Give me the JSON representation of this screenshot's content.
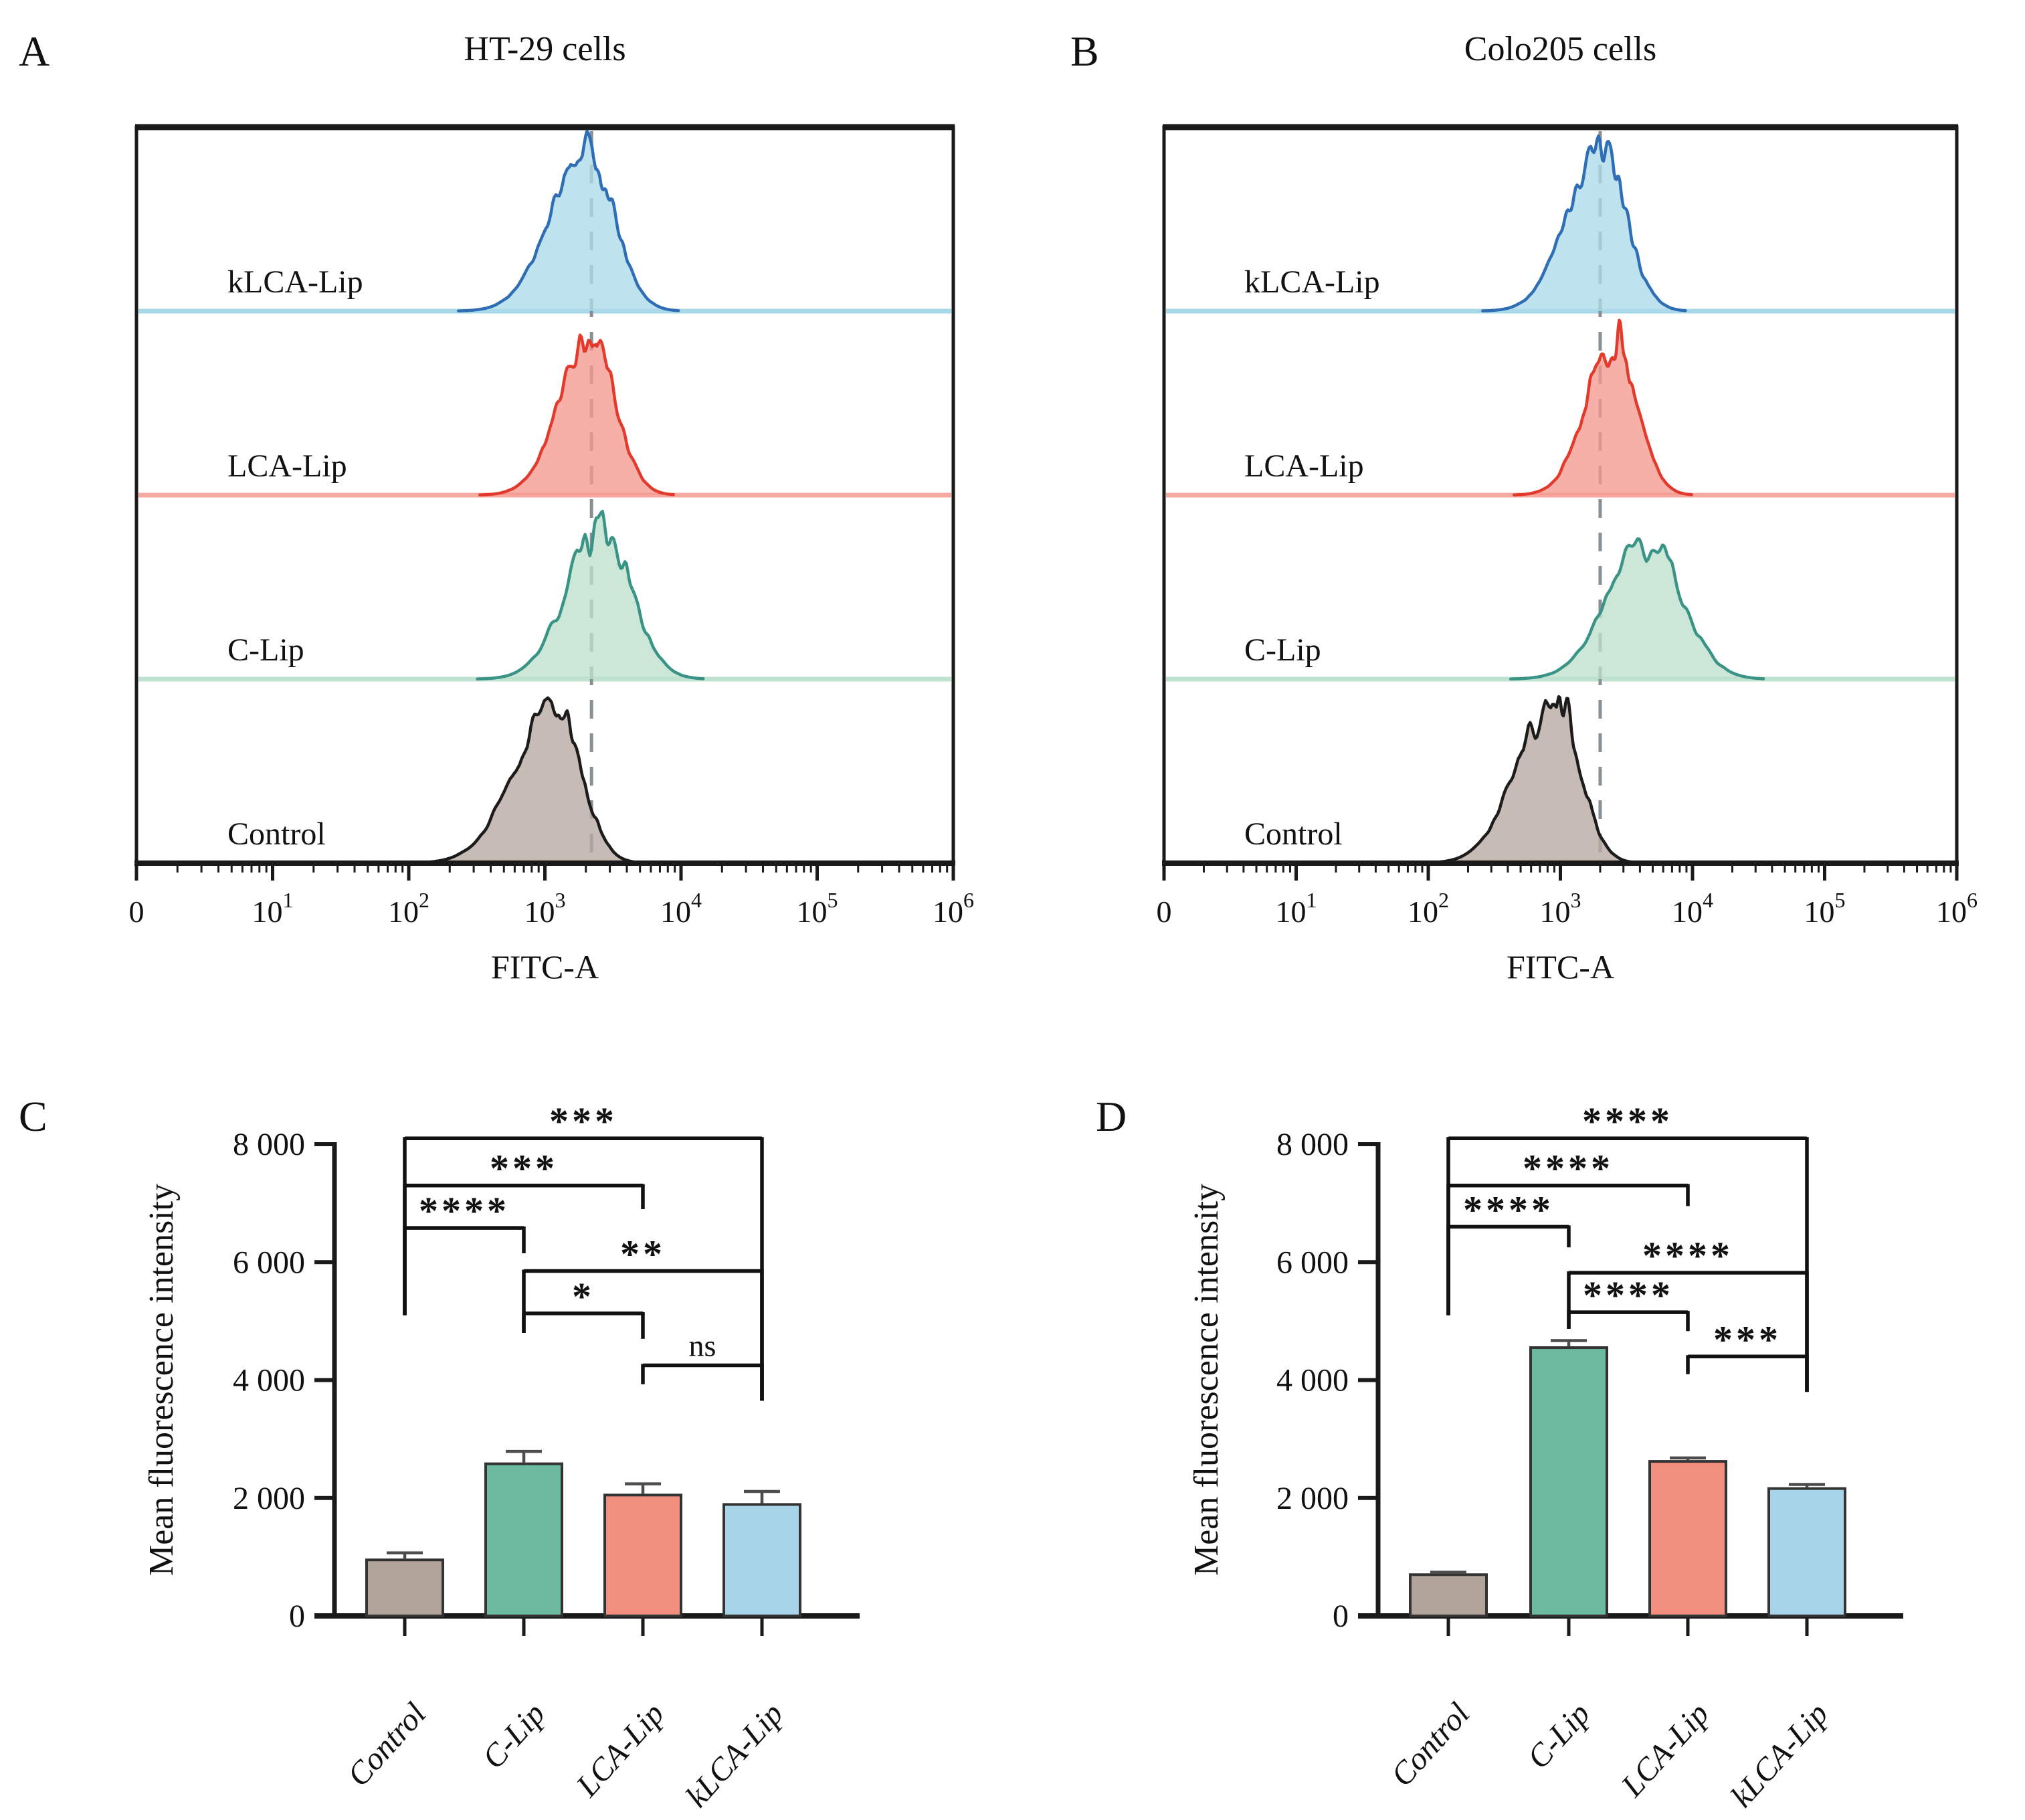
{
  "figure": {
    "background": "#ffffff",
    "description": "Flow cytometry histograms and mean fluorescence intensity bar charts for liposome uptake in HT-29 and Colo205 cells"
  },
  "chart_data": [
    {
      "panel_letter": "A",
      "type": "histogram",
      "title": "HT-29 cells",
      "xlabel": "FITC-A",
      "x_scale": "log10 decades, origin tick 0 then 10^1 to 10^6",
      "x_ticks": [
        "0",
        "10^1",
        "10^2",
        "10^3",
        "10^4",
        "10^5",
        "10^6"
      ],
      "dashed_reference_x": 2200,
      "dash_color": "#8b9094",
      "series": [
        {
          "name": "kLCA-Lip",
          "median": 2000,
          "spread_decades": 0.2,
          "peak_fraction": 0.88,
          "left_skew": 1.3,
          "stroke": "#2f6eb5",
          "fill": "#addbe9",
          "baseline_color": "#a6d8e8",
          "seed": 11
        },
        {
          "name": "LCA-Lip",
          "median": 2150,
          "spread_decades": 0.18,
          "peak_fraction": 0.88,
          "left_skew": 1.25,
          "stroke": "#e23b2e",
          "fill": "#f49a90",
          "baseline_color": "#f5a9a1",
          "seed": 22
        },
        {
          "name": "C-Lip",
          "median": 2600,
          "spread_decades": 0.22,
          "peak_fraction": 0.8,
          "left_skew": 1.15,
          "stroke": "#3a9486",
          "fill": "#bedfcd",
          "baseline_color": "#bfe2d1",
          "seed": 33
        },
        {
          "name": "Control",
          "median": 1200,
          "spread_decades": 0.185,
          "peak_fraction": 0.86,
          "left_skew": 1.6,
          "stroke": "#1c1c1c",
          "fill": "#b7a9a0",
          "baseline_color": null,
          "seed": 44
        }
      ]
    },
    {
      "panel_letter": "B",
      "type": "histogram",
      "title": "Colo205 cells",
      "xlabel": "FITC-A",
      "x_scale": "log10 decades, origin tick 0 then 10^1 to 10^6",
      "x_ticks": [
        "0",
        "10^1",
        "10^2",
        "10^3",
        "10^4",
        "10^5",
        "10^6"
      ],
      "dashed_reference_x": 2000,
      "dash_color": "#8b9094",
      "series": [
        {
          "name": "kLCA-Lip",
          "median": 2000,
          "spread_decades": 0.19,
          "peak_fraction": 0.9,
          "left_skew": 1.3,
          "stroke": "#2f6eb5",
          "fill": "#addbe9",
          "baseline_color": "#a6d8e8",
          "seed": 55
        },
        {
          "name": "LCA-Lip",
          "median": 2600,
          "spread_decades": 0.17,
          "peak_fraction": 0.86,
          "left_skew": 1.25,
          "stroke": "#e23b2e",
          "fill": "#f49a90",
          "baseline_color": "#f5a9a1",
          "seed": 66
        },
        {
          "name": "C-Lip",
          "median": 4500,
          "spread_decades": 0.26,
          "peak_fraction": 0.78,
          "left_skew": 1.1,
          "stroke": "#3a9486",
          "fill": "#bedfcd",
          "baseline_color": "#bfe2d1",
          "seed": 77
        },
        {
          "name": "Control",
          "median": 900,
          "spread_decades": 0.185,
          "peak_fraction": 0.9,
          "left_skew": 1.5,
          "stroke": "#1c1c1c",
          "fill": "#b7a9a0",
          "baseline_color": null,
          "seed": 88
        }
      ]
    },
    {
      "panel_letter": "C",
      "type": "bar",
      "ylabel": "Mean fluorescence intensity",
      "categories": [
        "Control",
        "C-Lip",
        "LCA-Lip",
        "kLCA-Lip"
      ],
      "values": [
        950,
        2580,
        2050,
        1890
      ],
      "errors": [
        120,
        210,
        190,
        220
      ],
      "bar_colors": [
        "#b2a49a",
        "#6cb9a0",
        "#f18f7f",
        "#a7d4e8"
      ],
      "bar_stroke": "#333333",
      "error_color": "#4d4d4d",
      "ylim": [
        0,
        8000
      ],
      "yticks": [
        {
          "value": 0,
          "label": "0"
        },
        {
          "value": 2000,
          "label": "2 000"
        },
        {
          "value": 4000,
          "label": "4 000"
        },
        {
          "value": 6000,
          "label": "6 000"
        },
        {
          "value": 8000,
          "label": "8 000"
        }
      ],
      "significance": [
        {
          "a": 0,
          "b": 3,
          "label": "***",
          "y": 8100,
          "a_end": 5100,
          "b_end": 3650
        },
        {
          "a": 0,
          "b": 2,
          "label": "***",
          "y": 7300,
          "a_end": 5100,
          "b_end": 6900
        },
        {
          "a": 0,
          "b": 1,
          "label": "****",
          "y": 6580,
          "a_end": 5100,
          "b_end": 6150
        },
        {
          "a": 1,
          "b": 3,
          "label": "**",
          "y": 5850,
          "a_end": 4800,
          "b_end": 3650
        },
        {
          "a": 1,
          "b": 2,
          "label": "*",
          "y": 5130,
          "a_end": 4800,
          "b_end": 4700
        },
        {
          "a": 2,
          "b": 3,
          "label": "ns",
          "y": 4250,
          "a_end": 3930,
          "b_end": 3650
        }
      ]
    },
    {
      "panel_letter": "D",
      "type": "bar",
      "ylabel": "Mean fluorescence intensity",
      "categories": [
        "Control",
        "C-Lip",
        "LCA-Lip",
        "kLCA-Lip"
      ],
      "values": [
        700,
        4550,
        2620,
        2160
      ],
      "errors": [
        40,
        120,
        60,
        70
      ],
      "bar_colors": [
        "#b2a49a",
        "#6cb9a0",
        "#f18f7f",
        "#a7d4e8"
      ],
      "bar_stroke": "#333333",
      "error_color": "#4d4d4d",
      "ylim": [
        0,
        8000
      ],
      "yticks": [
        {
          "value": 0,
          "label": "0"
        },
        {
          "value": 2000,
          "label": "2 000"
        },
        {
          "value": 4000,
          "label": "4 000"
        },
        {
          "value": 6000,
          "label": "6 000"
        },
        {
          "value": 8000,
          "label": "8 000"
        }
      ],
      "significance": [
        {
          "a": 0,
          "b": 3,
          "label": "****",
          "y": 8100,
          "a_end": 5100,
          "b_end": 3800
        },
        {
          "a": 0,
          "b": 2,
          "label": "****",
          "y": 7300,
          "a_end": 5100,
          "b_end": 6950
        },
        {
          "a": 0,
          "b": 1,
          "label": "****",
          "y": 6600,
          "a_end": 5100,
          "b_end": 6250
        },
        {
          "a": 1,
          "b": 3,
          "label": "****",
          "y": 5820,
          "a_end": 4870,
          "b_end": 3800
        },
        {
          "a": 1,
          "b": 2,
          "label": "****",
          "y": 5150,
          "a_end": 4870,
          "b_end": 4830
        },
        {
          "a": 2,
          "b": 3,
          "label": "***",
          "y": 4400,
          "a_end": 4100,
          "b_end": 3800
        }
      ]
    }
  ]
}
